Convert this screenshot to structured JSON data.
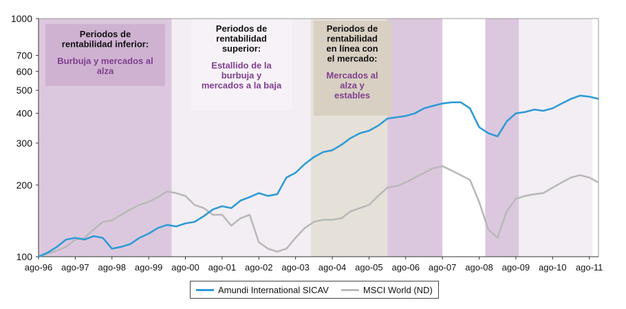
{
  "chart_data": {
    "type": "line",
    "title": "",
    "ylabel": "",
    "xlabel": "",
    "yscale": "log",
    "ylim": [
      100,
      1000
    ],
    "xlim": [
      0,
      183
    ],
    "y_ticks": [
      {
        "value": 100,
        "label": "100"
      },
      {
        "value": 200,
        "label": "200"
      },
      {
        "value": 300,
        "label": "300"
      },
      {
        "value": 400,
        "label": "400"
      },
      {
        "value": 500,
        "label": "500"
      },
      {
        "value": 600,
        "label": "600"
      },
      {
        "value": 700,
        "label": "700"
      },
      {
        "value": 1000,
        "label": "1000"
      }
    ],
    "x_ticks": [
      {
        "month": 0,
        "label": "ago-96"
      },
      {
        "month": 12,
        "label": "ago-97"
      },
      {
        "month": 24,
        "label": "ago-98"
      },
      {
        "month": 36,
        "label": "ago-99"
      },
      {
        "month": 48,
        "label": "ago-00"
      },
      {
        "month": 60,
        "label": "ago-01"
      },
      {
        "month": 72,
        "label": "ago-02"
      },
      {
        "month": 84,
        "label": "ago-03"
      },
      {
        "month": 96,
        "label": "ago-04"
      },
      {
        "month": 108,
        "label": "ago-05"
      },
      {
        "month": 120,
        "label": "ago-06"
      },
      {
        "month": 132,
        "label": "ago-07"
      },
      {
        "month": 144,
        "label": "ago-08"
      },
      {
        "month": 156,
        "label": "ago-09"
      },
      {
        "month": 168,
        "label": "ago-10"
      },
      {
        "month": 180,
        "label": "ago-11"
      }
    ],
    "shaded_regions": [
      {
        "start": 0,
        "end": 43.5,
        "color": "#dcc8de",
        "label": "inferior"
      },
      {
        "start": 43.5,
        "end": 89,
        "color": "#f3eef3",
        "label": "superior"
      },
      {
        "start": 89,
        "end": 114,
        "color": "#e6e1d8",
        "label": "en_linea"
      },
      {
        "start": 114,
        "end": 132,
        "color": "#dcc8de",
        "label": "inferior"
      },
      {
        "start": 146,
        "end": 157,
        "color": "#dcc8de",
        "label": "inferior"
      },
      {
        "start": 157,
        "end": 181,
        "color": "#f3eef3",
        "label": "superior"
      }
    ],
    "annotations": [
      {
        "id": "inferior",
        "head": [
          "Periodos de",
          "rentabilidad inferior:"
        ],
        "body": [
          "Burbuja y mercados al",
          "alza"
        ],
        "box_color": "#cfb2d2"
      },
      {
        "id": "superior",
        "head": [
          "Periodos de",
          "rentabilidad",
          "superior:"
        ],
        "body": [
          "Estallido de la",
          "burbuja y",
          "mercados a la baja"
        ],
        "box_color": "#f7f2f7"
      },
      {
        "id": "en_linea",
        "head": [
          "Periodos de",
          "rentabilidad",
          "en línea con",
          "el mercado:"
        ],
        "body": [
          "Mercados al",
          "alza y",
          "estables"
        ],
        "box_color": "#d8d0c2"
      }
    ],
    "series": [
      {
        "name": "Amundi International SICAV",
        "color": "#2e9bd6",
        "points": [
          [
            0,
            100
          ],
          [
            3,
            104
          ],
          [
            6,
            110
          ],
          [
            9,
            118
          ],
          [
            12,
            120
          ],
          [
            15,
            118
          ],
          [
            18,
            122
          ],
          [
            21,
            120
          ],
          [
            24,
            108
          ],
          [
            27,
            110
          ],
          [
            30,
            113
          ],
          [
            33,
            120
          ],
          [
            36,
            125
          ],
          [
            39,
            132
          ],
          [
            42,
            136
          ],
          [
            45,
            134
          ],
          [
            48,
            138
          ],
          [
            51,
            140
          ],
          [
            54,
            148
          ],
          [
            57,
            158
          ],
          [
            60,
            163
          ],
          [
            63,
            160
          ],
          [
            66,
            172
          ],
          [
            69,
            178
          ],
          [
            72,
            185
          ],
          [
            75,
            180
          ],
          [
            78,
            183
          ],
          [
            81,
            215
          ],
          [
            84,
            225
          ],
          [
            87,
            245
          ],
          [
            90,
            262
          ],
          [
            93,
            275
          ],
          [
            96,
            280
          ],
          [
            99,
            295
          ],
          [
            102,
            315
          ],
          [
            105,
            330
          ],
          [
            108,
            338
          ],
          [
            111,
            355
          ],
          [
            114,
            380
          ],
          [
            117,
            385
          ],
          [
            120,
            390
          ],
          [
            123,
            400
          ],
          [
            126,
            420
          ],
          [
            129,
            430
          ],
          [
            132,
            440
          ],
          [
            135,
            445
          ],
          [
            138,
            445
          ],
          [
            141,
            420
          ],
          [
            144,
            350
          ],
          [
            147,
            330
          ],
          [
            150,
            320
          ],
          [
            153,
            370
          ],
          [
            156,
            400
          ],
          [
            159,
            405
          ],
          [
            162,
            415
          ],
          [
            165,
            410
          ],
          [
            168,
            420
          ],
          [
            171,
            440
          ],
          [
            174,
            460
          ],
          [
            177,
            475
          ],
          [
            180,
            470
          ],
          [
            183,
            460
          ]
        ]
      },
      {
        "name": "MSCI World (ND)",
        "color": "#b9b9b9",
        "points": [
          [
            0,
            100
          ],
          [
            3,
            103
          ],
          [
            6,
            106
          ],
          [
            9,
            110
          ],
          [
            12,
            118
          ],
          [
            15,
            120
          ],
          [
            18,
            130
          ],
          [
            21,
            140
          ],
          [
            24,
            142
          ],
          [
            27,
            150
          ],
          [
            30,
            158
          ],
          [
            33,
            165
          ],
          [
            36,
            170
          ],
          [
            39,
            178
          ],
          [
            42,
            188
          ],
          [
            45,
            185
          ],
          [
            48,
            180
          ],
          [
            51,
            165
          ],
          [
            54,
            160
          ],
          [
            57,
            150
          ],
          [
            60,
            150
          ],
          [
            63,
            135
          ],
          [
            66,
            145
          ],
          [
            69,
            150
          ],
          [
            72,
            115
          ],
          [
            75,
            108
          ],
          [
            78,
            105
          ],
          [
            81,
            108
          ],
          [
            84,
            120
          ],
          [
            87,
            132
          ],
          [
            90,
            140
          ],
          [
            93,
            143
          ],
          [
            96,
            143
          ],
          [
            99,
            145
          ],
          [
            102,
            155
          ],
          [
            105,
            160
          ],
          [
            108,
            165
          ],
          [
            111,
            180
          ],
          [
            114,
            195
          ],
          [
            117,
            198
          ],
          [
            120,
            205
          ],
          [
            123,
            215
          ],
          [
            126,
            225
          ],
          [
            129,
            235
          ],
          [
            132,
            240
          ],
          [
            135,
            230
          ],
          [
            138,
            220
          ],
          [
            141,
            210
          ],
          [
            144,
            170
          ],
          [
            147,
            130
          ],
          [
            150,
            120
          ],
          [
            153,
            155
          ],
          [
            156,
            175
          ],
          [
            159,
            180
          ],
          [
            162,
            183
          ],
          [
            165,
            185
          ],
          [
            168,
            195
          ],
          [
            171,
            205
          ],
          [
            174,
            215
          ],
          [
            177,
            220
          ],
          [
            180,
            215
          ],
          [
            183,
            205
          ]
        ]
      }
    ]
  }
}
